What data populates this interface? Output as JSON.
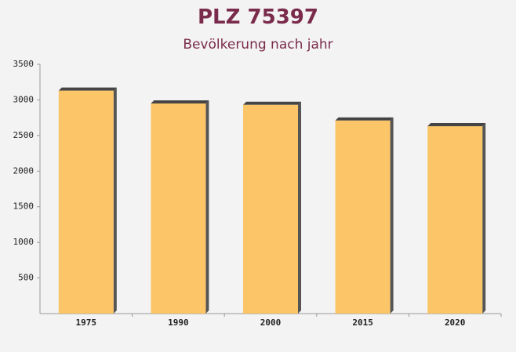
{
  "chart_data": {
    "type": "bar",
    "title": "PLZ 75397",
    "subtitle": "Bevölkerung nach jahr",
    "categories": [
      "1975",
      "1990",
      "2000",
      "2015",
      "2020"
    ],
    "values": [
      3130,
      2950,
      2930,
      2710,
      2630
    ],
    "color": "#fbbc4f",
    "ylim": [
      0,
      3500
    ],
    "yticks": [
      500,
      1000,
      1500,
      2000,
      2500,
      3000,
      3500
    ],
    "grid": false
  }
}
